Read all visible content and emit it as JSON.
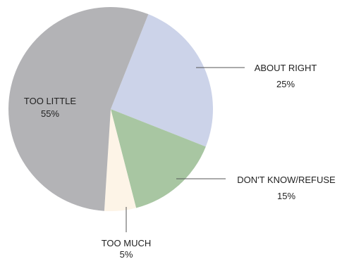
{
  "chart_data": {
    "type": "pie",
    "title": "",
    "slices": [
      {
        "label": "ABOUT RIGHT",
        "value": 25,
        "value_label": "25%",
        "color": "#ccd3e9"
      },
      {
        "label": "DON'T KNOW/REFUSE",
        "value": 15,
        "value_label": "15%",
        "color": "#a8c6a2"
      },
      {
        "label": "TOO MUCH",
        "value": 5,
        "value_label": "5%",
        "color": "#fdf4e7"
      },
      {
        "label": "TOO LITTLE",
        "value": 55,
        "value_label": "55%",
        "color": "#b3b3b6"
      }
    ]
  }
}
